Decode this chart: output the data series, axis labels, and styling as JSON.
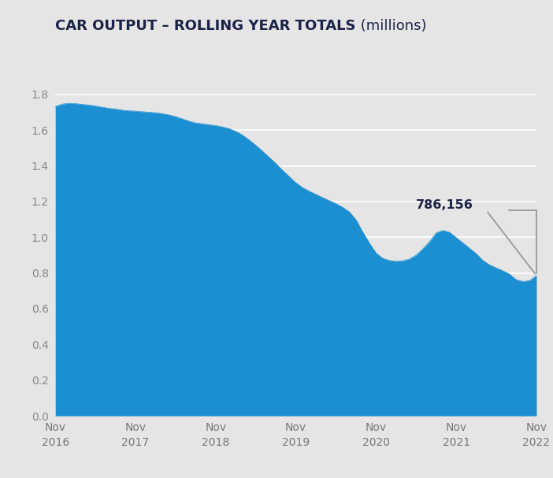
{
  "title_bold": "CAR OUTPUT – ROLLING YEAR TOTALS",
  "title_normal": " (millions)",
  "background_color": "#e5e5e5",
  "plot_bg_color": "#e5e5e5",
  "area_color": "#1b8fd2",
  "annotation_text": "786,156",
  "annotation_color": "#1a2347",
  "annotation_line_color": "#999999",
  "ylim": [
    0,
    1.9
  ],
  "yticks": [
    0,
    0.2,
    0.4,
    0.6,
    0.8,
    1.0,
    1.2,
    1.4,
    1.6,
    1.8
  ],
  "xtick_positions": [
    0,
    12,
    24,
    36,
    48,
    60,
    72
  ],
  "xtick_labels": [
    "Nov\n2016",
    "Nov\n2017",
    "Nov\n2018",
    "Nov\n2019",
    "Nov\n2020",
    "Nov\n2021",
    "Nov\n2022"
  ],
  "months": [
    0,
    1,
    2,
    3,
    4,
    5,
    6,
    7,
    8,
    9,
    10,
    11,
    12,
    13,
    14,
    15,
    16,
    17,
    18,
    19,
    20,
    21,
    22,
    23,
    24,
    25,
    26,
    27,
    28,
    29,
    30,
    31,
    32,
    33,
    34,
    35,
    36,
    37,
    38,
    39,
    40,
    41,
    42,
    43,
    44,
    45,
    46,
    47,
    48,
    49,
    50,
    51,
    52,
    53,
    54,
    55,
    56,
    57,
    58,
    59,
    60,
    61,
    62,
    63,
    64,
    65,
    66,
    67,
    68,
    69,
    70,
    71,
    72
  ],
  "values": [
    1.732,
    1.745,
    1.75,
    1.748,
    1.744,
    1.74,
    1.735,
    1.728,
    1.722,
    1.718,
    1.712,
    1.708,
    1.706,
    1.703,
    1.7,
    1.697,
    1.692,
    1.685,
    1.675,
    1.663,
    1.65,
    1.64,
    1.635,
    1.63,
    1.625,
    1.618,
    1.608,
    1.593,
    1.572,
    1.545,
    1.515,
    1.482,
    1.448,
    1.413,
    1.375,
    1.34,
    1.305,
    1.278,
    1.258,
    1.24,
    1.222,
    1.205,
    1.188,
    1.168,
    1.142,
    1.098,
    1.03,
    0.968,
    0.912,
    0.882,
    0.87,
    0.865,
    0.868,
    0.878,
    0.9,
    0.935,
    0.975,
    1.025,
    1.038,
    1.028,
    0.998,
    0.968,
    0.938,
    0.908,
    0.87,
    0.845,
    0.828,
    0.812,
    0.793,
    0.762,
    0.752,
    0.758,
    0.786
  ]
}
